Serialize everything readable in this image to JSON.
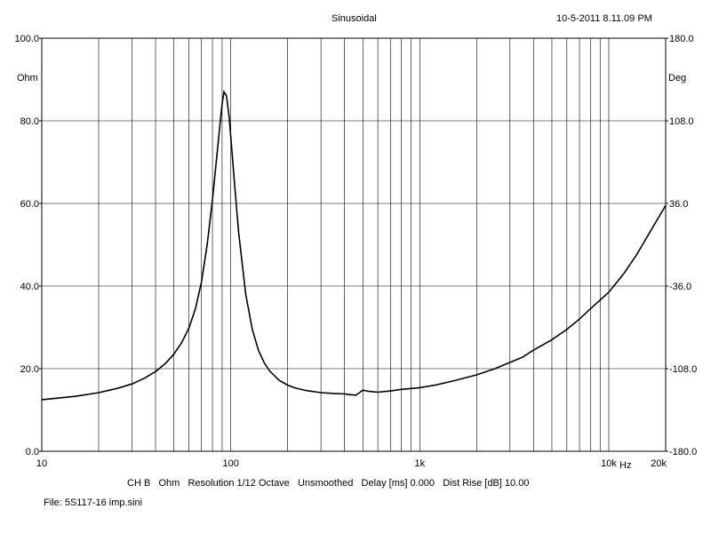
{
  "header": {
    "title": "Sinusoidal",
    "timestamp": "10-5-2011 8.11.09 PM"
  },
  "footer": {
    "settings": "CH B   Ohm   Resolution 1/12 Octave   Unsmoothed   Delay [ms] 0.000   Dist Rise [dB] 10.00",
    "file": "File: 5S117-16 imp.sini"
  },
  "colors": {
    "background": "#ffffff",
    "grid": "#000000",
    "curve": "#000000"
  },
  "chart_data": {
    "type": "line",
    "title": "Sinusoidal",
    "x_scale": "log",
    "xlim": [
      10,
      20000
    ],
    "ylim": [
      0,
      100
    ],
    "y2lim": [
      -180,
      180
    ],
    "ylabel": "Ohm",
    "y2label": "Deg",
    "xunit_label": "Hz",
    "x_ticks": [
      {
        "value": 10,
        "label": "10"
      },
      {
        "value": 100,
        "label": "100"
      },
      {
        "value": 1000,
        "label": "1k"
      },
      {
        "value": 10000,
        "label": "10k"
      },
      {
        "value": 20000,
        "label": "20k"
      }
    ],
    "y_ticks": [
      {
        "value": 0,
        "label": "0.0"
      },
      {
        "value": 20,
        "label": "20.0"
      },
      {
        "value": 40,
        "label": "40.0"
      },
      {
        "value": 60,
        "label": "60.0"
      },
      {
        "value": 80,
        "label": "80.0"
      },
      {
        "value": 100,
        "label": "100.0"
      }
    ],
    "y2_ticks": [
      {
        "value": -180,
        "label": "-180.0"
      },
      {
        "value": -108,
        "label": "-108.0"
      },
      {
        "value": -36,
        "label": "-36.0"
      },
      {
        "value": 36,
        "label": "36.0"
      },
      {
        "value": 108,
        "label": "108.0"
      },
      {
        "value": 180,
        "label": "180.0"
      }
    ],
    "grid": true,
    "series": [
      {
        "x": [
          10,
          15,
          20,
          25,
          30,
          35,
          40,
          45,
          50,
          55,
          60,
          65,
          70,
          75,
          80,
          85,
          88,
          90,
          92,
          95,
          98,
          100,
          105,
          110,
          120,
          130,
          140,
          150,
          160,
          180,
          200,
          220,
          250,
          300,
          350,
          400,
          430,
          460,
          480,
          500,
          540,
          600,
          700,
          800,
          1000,
          1200,
          1500,
          2000,
          2500,
          3000,
          3500,
          4000,
          5000,
          6000,
          7000,
          8000,
          10000,
          12000,
          14000,
          16000,
          18000,
          20000
        ],
        "values": [
          12.5,
          13.3,
          14.2,
          15.2,
          16.3,
          17.7,
          19.3,
          21.2,
          23.5,
          26.3,
          29.8,
          34.5,
          41.0,
          50.0,
          61.0,
          73.0,
          80.0,
          84.0,
          87.0,
          86.0,
          81.0,
          76.0,
          64.0,
          53.0,
          38.0,
          29.5,
          24.5,
          21.5,
          19.5,
          17.2,
          16.0,
          15.3,
          14.7,
          14.2,
          14.0,
          13.9,
          13.7,
          13.6,
          14.2,
          14.8,
          14.5,
          14.3,
          14.6,
          15.0,
          15.4,
          16.0,
          17.0,
          18.5,
          20.0,
          21.5,
          22.8,
          24.5,
          27.0,
          29.5,
          32.0,
          34.5,
          38.5,
          43.0,
          47.5,
          52.0,
          56.0,
          59.5
        ]
      }
    ]
  }
}
